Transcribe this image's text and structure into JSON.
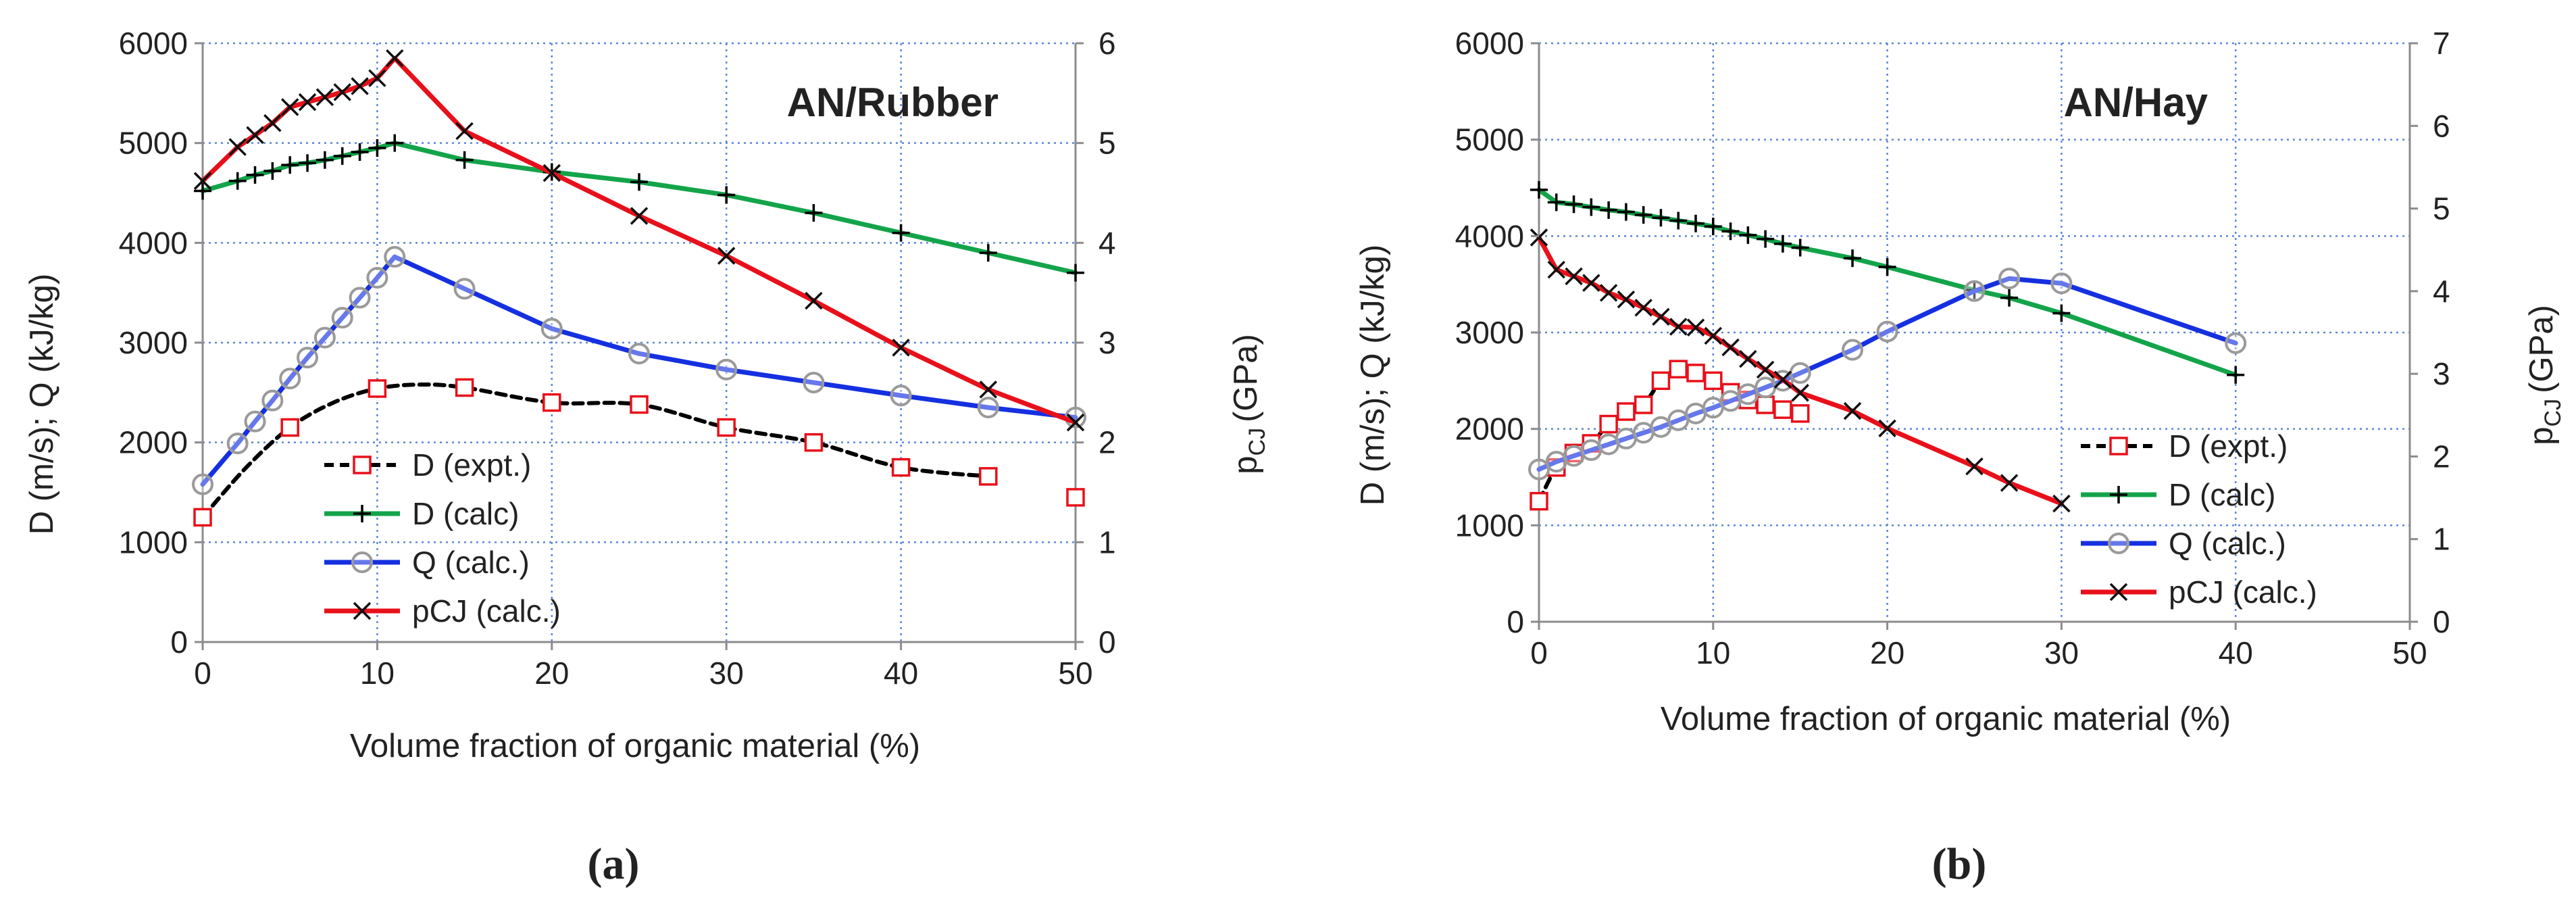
{
  "colors": {
    "D_expt": "#000000",
    "D_expt_marker": "#e8101a",
    "D_calc": "#13a44a",
    "Q_calc": "#1530e0",
    "Q_marker": "#9a9a9a",
    "pCJ": "#e8101a",
    "grid": "#5b86d6",
    "axis": "#8c8c8c"
  },
  "chart_data": [
    {
      "type": "line",
      "panel": "a",
      "title": "AN/Rubber",
      "caption": "(a)",
      "xlabel": "Volume fraction of organic material (%)",
      "ylabel": "D (m/s); Q (kJ/kg)",
      "y2label_main": "p",
      "y2label_sub": "CJ",
      "y2label_unit": "(GPa)",
      "xlim": [
        0,
        50
      ],
      "ylim": [
        0,
        6000
      ],
      "y2lim": [
        0,
        6
      ],
      "xticks": [
        "0",
        "10",
        "20",
        "30",
        "40",
        "50"
      ],
      "yticks": [
        "0",
        "1000",
        "2000",
        "3000",
        "4000",
        "5000",
        "6000"
      ],
      "y2ticks": [
        "0",
        "1",
        "2",
        "3",
        "4",
        "5",
        "6"
      ],
      "legend": [
        "D (expt.)",
        "D (calc)",
        "Q (calc.)",
        "pCJ (calc.)"
      ],
      "series": [
        {
          "name": "D (expt.)",
          "axis": "left",
          "x": [
            0,
            5,
            10,
            15,
            20,
            25,
            30,
            35,
            40,
            45,
            50
          ],
          "values": [
            1250,
            2150,
            2540,
            2550,
            2400,
            2380,
            2150,
            2000,
            1750,
            1660,
            1450
          ],
          "curve_x": [
            0,
            2.5,
            5,
            7.5,
            10,
            12.5,
            15,
            20,
            25,
            30,
            35,
            40,
            45
          ],
          "curve_values": [
            1250,
            1750,
            2150,
            2400,
            2540,
            2580,
            2550,
            2400,
            2380,
            2150,
            2000,
            1750,
            1660
          ]
        },
        {
          "name": "D (calc)",
          "axis": "left",
          "x": [
            0,
            2,
            3,
            4,
            5,
            6,
            7,
            8,
            9,
            10,
            11,
            15,
            20,
            25,
            30,
            35,
            40,
            45,
            50
          ],
          "values": [
            4520,
            4620,
            4680,
            4720,
            4780,
            4800,
            4830,
            4870,
            4910,
            4950,
            5000,
            4830,
            4710,
            4610,
            4480,
            4300,
            4100,
            3900,
            3700
          ]
        },
        {
          "name": "Q (calc.)",
          "axis": "left",
          "x": [
            0,
            2,
            3,
            4,
            5,
            6,
            7,
            8,
            9,
            10,
            11,
            15,
            20,
            25,
            30,
            35,
            40,
            45,
            50
          ],
          "values": [
            1580,
            1990,
            2210,
            2420,
            2640,
            2850,
            3050,
            3250,
            3450,
            3650,
            3860,
            3540,
            3140,
            2890,
            2730,
            2600,
            2470,
            2350,
            2250
          ]
        },
        {
          "name": "pCJ (calc.)",
          "axis": "right",
          "x": [
            0,
            2,
            3,
            4,
            5,
            6,
            7,
            8,
            9,
            10,
            11,
            15,
            20,
            25,
            30,
            35,
            40,
            45,
            50
          ],
          "values": [
            4.62,
            4.96,
            5.08,
            5.2,
            5.36,
            5.41,
            5.46,
            5.51,
            5.57,
            5.65,
            5.85,
            5.12,
            4.7,
            4.27,
            3.87,
            3.42,
            2.95,
            2.53,
            2.2
          ]
        }
      ]
    },
    {
      "type": "line",
      "panel": "b",
      "title": "AN/Hay",
      "caption": "(b)",
      "xlabel": "Volume fraction of organic material (%)",
      "ylabel": "D (m/s); Q (kJ/kg)",
      "y2label_main": "p",
      "y2label_sub": "CJ",
      "y2label_unit": "(GPa)",
      "xlim": [
        0,
        50
      ],
      "ylim": [
        0,
        6000
      ],
      "y2lim": [
        0,
        7
      ],
      "xticks": [
        "0",
        "10",
        "20",
        "30",
        "40",
        "50"
      ],
      "yticks": [
        "0",
        "1000",
        "2000",
        "3000",
        "4000",
        "5000",
        "6000"
      ],
      "y2ticks": [
        "0",
        "1",
        "2",
        "3",
        "4",
        "5",
        "6",
        "7"
      ],
      "legend": [
        "D (expt.)",
        "D (calc)",
        "Q (calc.)",
        "pCJ (calc.)"
      ],
      "series": [
        {
          "name": "D (expt.)",
          "axis": "left",
          "x": [
            0,
            1,
            2,
            3,
            4,
            5,
            6,
            7,
            8,
            9,
            10,
            11,
            12,
            13,
            14,
            15
          ],
          "values": [
            1250,
            1600,
            1750,
            1850,
            2050,
            2180,
            2250,
            2500,
            2620,
            2580,
            2500,
            2380,
            2300,
            2250,
            2200,
            2160
          ],
          "curve_x": [
            0,
            1,
            2,
            3,
            4,
            5,
            6,
            7,
            8,
            9,
            10,
            11,
            12,
            13,
            14,
            15
          ],
          "curve_values": [
            1250,
            1600,
            1750,
            1850,
            2050,
            2180,
            2250,
            2500,
            2620,
            2580,
            2500,
            2380,
            2300,
            2250,
            2200,
            2160
          ]
        },
        {
          "name": "D (calc)",
          "axis": "left",
          "x": [
            0,
            1,
            2,
            3,
            4,
            5,
            6,
            7,
            8,
            9,
            10,
            11,
            12,
            13,
            14,
            15,
            18,
            20,
            25,
            27,
            30,
            40
          ],
          "values": [
            4480,
            4350,
            4330,
            4300,
            4270,
            4250,
            4220,
            4190,
            4160,
            4130,
            4100,
            4050,
            4010,
            3970,
            3920,
            3880,
            3770,
            3680,
            3440,
            3360,
            3200,
            2560
          ]
        },
        {
          "name": "Q (calc.)",
          "axis": "left",
          "x": [
            0,
            1,
            2,
            3,
            4,
            5,
            6,
            7,
            8,
            9,
            10,
            11,
            12,
            13,
            14,
            15,
            18,
            20,
            25,
            27,
            30,
            40
          ],
          "values": [
            1580,
            1660,
            1720,
            1780,
            1840,
            1900,
            1960,
            2020,
            2090,
            2160,
            2220,
            2290,
            2360,
            2430,
            2500,
            2580,
            2820,
            3010,
            3430,
            3560,
            3510,
            2890
          ]
        },
        {
          "name": "pCJ (calc.)",
          "axis": "right",
          "x": [
            0,
            1,
            2,
            3,
            4,
            5,
            6,
            7,
            8,
            9,
            10,
            11,
            12,
            13,
            14,
            15,
            18,
            20,
            25,
            27,
            30
          ],
          "values": [
            4.65,
            4.26,
            4.18,
            4.1,
            3.98,
            3.9,
            3.8,
            3.69,
            3.57,
            3.56,
            3.46,
            3.32,
            3.18,
            3.05,
            2.93,
            2.77,
            2.55,
            2.34,
            1.88,
            1.68,
            1.43
          ]
        }
      ]
    }
  ]
}
